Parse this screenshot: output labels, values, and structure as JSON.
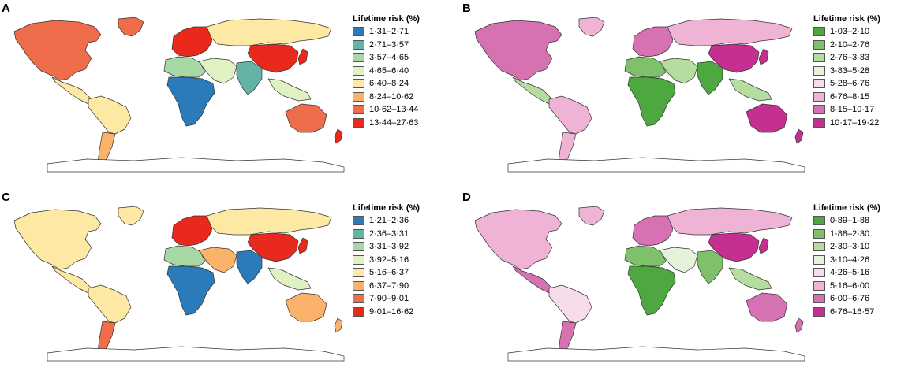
{
  "panels": [
    {
      "letter": "A",
      "legend_title": "Lifetime risk (%)",
      "scheme": "diverging-blue-red",
      "bins": [
        {
          "label": "1·31–2·71",
          "color": "#2b7bba"
        },
        {
          "label": "2·71–3·57",
          "color": "#63b3a6"
        },
        {
          "label": "3·57–4·65",
          "color": "#a8d8a3"
        },
        {
          "label": "4·65–6·40",
          "color": "#e0f1c4"
        },
        {
          "label": "6·40–8·24",
          "color": "#fde9a4"
        },
        {
          "label": "8·24–10·62",
          "color": "#fbb26a"
        },
        {
          "label": "10·62–13·44",
          "color": "#f06d4b"
        },
        {
          "label": "13·44–27·63",
          "color": "#e8291c"
        }
      ],
      "regions": {
        "north_america": 6,
        "greenland": 6,
        "central_america": 4,
        "south_america": 4,
        "south_cone": 5,
        "europe": 7,
        "russia": 4,
        "middle_east": 3,
        "africa_north": 2,
        "africa_sub": 0,
        "south_asia": 1,
        "china": 7,
        "southeast_asia": 3,
        "australia": 6,
        "new_zealand": 7,
        "japan": 7
      }
    },
    {
      "letter": "B",
      "legend_title": "Lifetime risk (%)",
      "scheme": "diverging-green-magenta",
      "bins": [
        {
          "label": "1·03–2·10",
          "color": "#4da83f"
        },
        {
          "label": "2·10–2·76",
          "color": "#7fc06a"
        },
        {
          "label": "2·76–3·83",
          "color": "#b5dda0"
        },
        {
          "label": "3·83–5·28",
          "color": "#e6f3da"
        },
        {
          "label": "5·28–6·76",
          "color": "#f7dcec"
        },
        {
          "label": "6·76–8·15",
          "color": "#efb3d6"
        },
        {
          "label": "8·15–10·17",
          "color": "#d672b2"
        },
        {
          "label": "10·17–19·22",
          "color": "#c42f91"
        }
      ],
      "regions": {
        "north_america": 6,
        "greenland": 5,
        "central_america": 2,
        "south_america": 5,
        "south_cone": 5,
        "europe": 6,
        "russia": 5,
        "middle_east": 2,
        "africa_north": 1,
        "africa_sub": 0,
        "south_asia": 0,
        "china": 7,
        "southeast_asia": 2,
        "australia": 7,
        "new_zealand": 7,
        "japan": 7
      }
    },
    {
      "letter": "C",
      "legend_title": "Lifetime risk (%)",
      "scheme": "diverging-blue-red",
      "bins": [
        {
          "label": "1·21–2·36",
          "color": "#2b7bba"
        },
        {
          "label": "2·36–3·31",
          "color": "#63b3a6"
        },
        {
          "label": "3·31–3·92",
          "color": "#a8d8a3"
        },
        {
          "label": "3·92–5·16",
          "color": "#e0f1c4"
        },
        {
          "label": "5·16–6·37",
          "color": "#fde9a4"
        },
        {
          "label": "6·37–7·90",
          "color": "#fbb26a"
        },
        {
          "label": "7·90–9·01",
          "color": "#f06d4b"
        },
        {
          "label": "9·01–16·62",
          "color": "#e8291c"
        }
      ],
      "regions": {
        "north_america": 4,
        "greenland": 4,
        "central_america": 4,
        "south_america": 4,
        "south_cone": 6,
        "europe": 7,
        "russia": 4,
        "middle_east": 5,
        "africa_north": 2,
        "africa_sub": 0,
        "south_asia": 0,
        "china": 7,
        "southeast_asia": 3,
        "australia": 5,
        "new_zealand": 5,
        "japan": 7
      }
    },
    {
      "letter": "D",
      "legend_title": "Lifetime risk (%)",
      "scheme": "diverging-green-magenta",
      "bins": [
        {
          "label": "0·89–1·88",
          "color": "#4da83f"
        },
        {
          "label": "1·88–2·30",
          "color": "#7fc06a"
        },
        {
          "label": "2·30–3·10",
          "color": "#b5dda0"
        },
        {
          "label": "3·10–4·26",
          "color": "#e6f3da"
        },
        {
          "label": "4·26–5·16",
          "color": "#f7dcec"
        },
        {
          "label": "5·16–6·00",
          "color": "#efb3d6"
        },
        {
          "label": "6·00–6·76",
          "color": "#d672b2"
        },
        {
          "label": "6·76–16·57",
          "color": "#c42f91"
        }
      ],
      "regions": {
        "north_america": 5,
        "greenland": 5,
        "central_america": 6,
        "south_america": 4,
        "south_cone": 6,
        "europe": 6,
        "russia": 5,
        "middle_east": 3,
        "africa_north": 1,
        "africa_sub": 0,
        "south_asia": 1,
        "china": 7,
        "southeast_asia": 2,
        "australia": 6,
        "new_zealand": 6,
        "japan": 7
      }
    }
  ]
}
